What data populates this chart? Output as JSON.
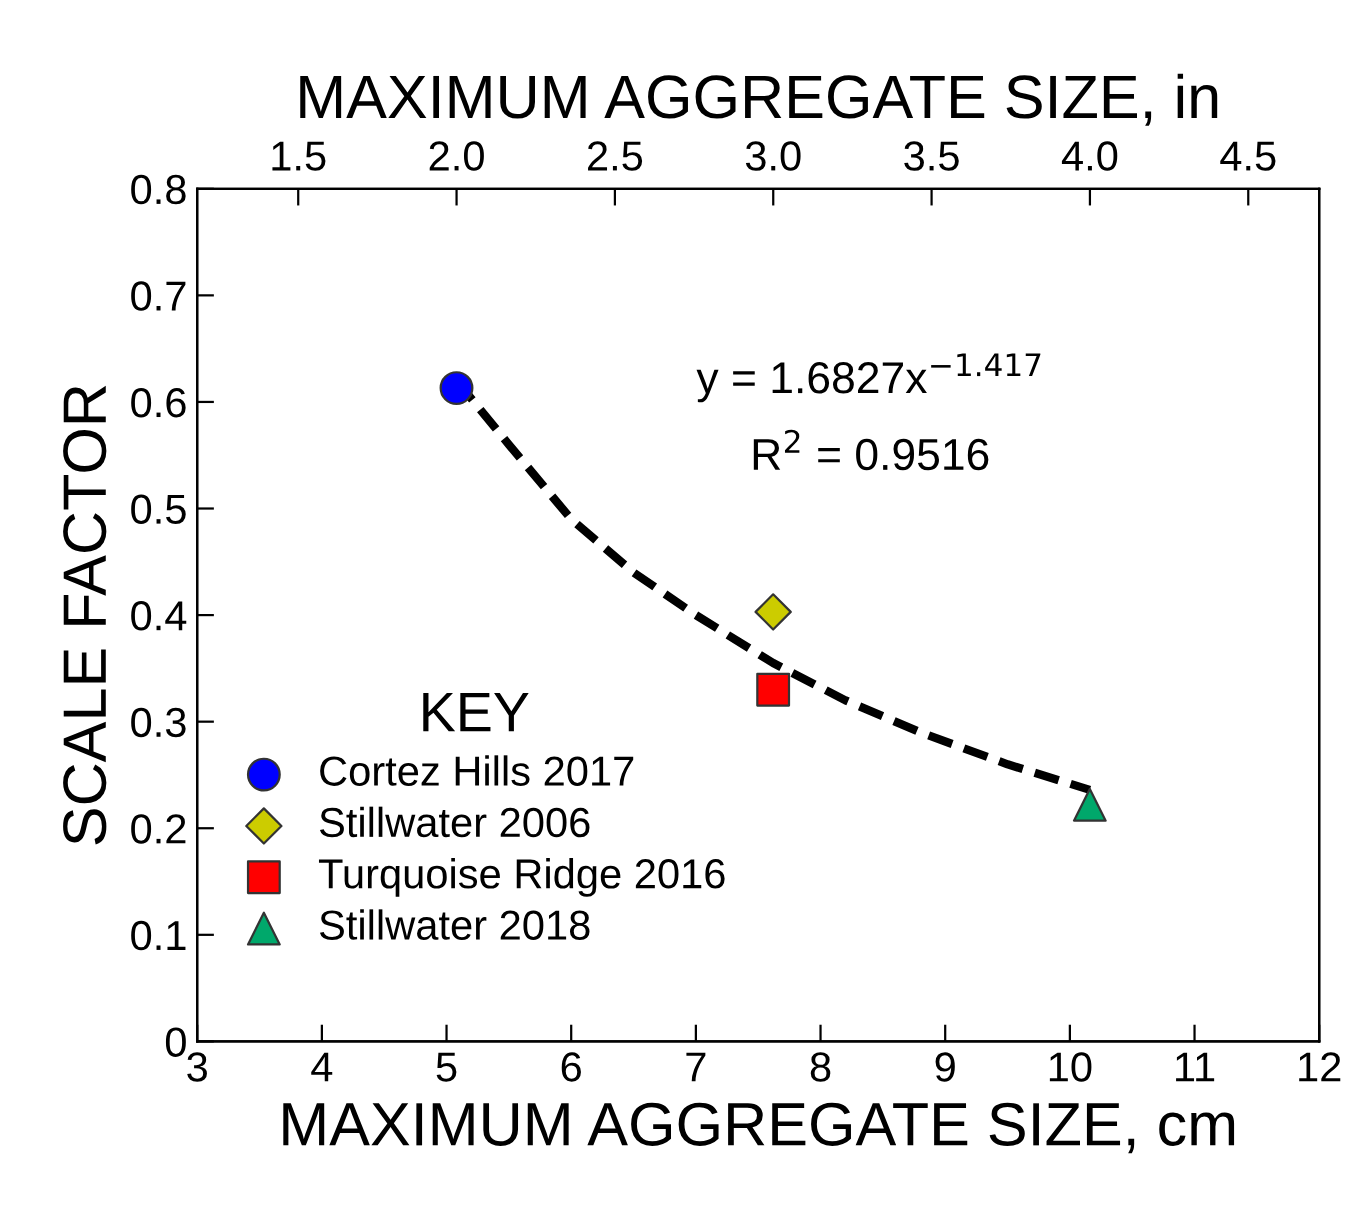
{
  "chart_data": {
    "type": "scatter",
    "xlabel": "MAXIMUM AGGREGATE SIZE, cm",
    "ylabel": "SCALE FACTOR",
    "x2label": "MAXIMUM AGGREGATE SIZE, in",
    "xlim": [
      3,
      12
    ],
    "xticks": [
      3,
      4,
      5,
      6,
      7,
      8,
      9,
      10,
      11,
      12
    ],
    "x2lim": [
      1.181,
      4.724
    ],
    "x2ticks": [
      {
        "value": 1.5,
        "label": "1.5"
      },
      {
        "value": 2.0,
        "label": "2.0"
      },
      {
        "value": 2.5,
        "label": "2.5"
      },
      {
        "value": 3.0,
        "label": "3.0"
      },
      {
        "value": 3.5,
        "label": "3.5"
      },
      {
        "value": 4.0,
        "label": "4.0"
      },
      {
        "value": 4.5,
        "label": "4.5"
      }
    ],
    "ylim": [
      0,
      0.8
    ],
    "yticks": [
      0,
      0.1,
      0.2,
      0.3,
      0.4,
      0.5,
      0.6,
      0.7,
      0.8
    ],
    "grid": false,
    "legend": "bottom left",
    "legend_title": "KEY",
    "annotations": [
      "y = 1.6827x$^{−1.417}$",
      "R$^{2}$ = 0.9516"
    ],
    "series": [
      {
        "type": "line",
        "color": "#000000",
        "line_style": "dashed",
        "marker": "none",
        "x": [
          5.08,
          5.5,
          6,
          6.5,
          7,
          7.62,
          8.2,
          8.8,
          9.5,
          10.16
        ],
        "values": [
          0.62,
          0.56,
          0.49,
          0.44,
          0.4,
          0.355,
          0.32,
          0.29,
          0.26,
          0.236
        ]
      },
      {
        "name": "Cortez Hills 2017",
        "color": "#0000ff",
        "marker": "circle",
        "x": [
          5.08
        ],
        "values": [
          0.613
        ]
      },
      {
        "name": "Stillwater 2006",
        "color": "#cccc00",
        "marker": "diamond",
        "x": [
          7.62
        ],
        "values": [
          0.403
        ]
      },
      {
        "name": "Turquoise Ridge 2016",
        "color": "#ff0000",
        "marker": "square",
        "x": [
          7.62
        ],
        "values": [
          0.33
        ]
      },
      {
        "name": "Stillwater 2018",
        "color": "#00a86b",
        "marker": "triangle",
        "x": [
          10.16
        ],
        "values": [
          0.222
        ]
      }
    ]
  }
}
